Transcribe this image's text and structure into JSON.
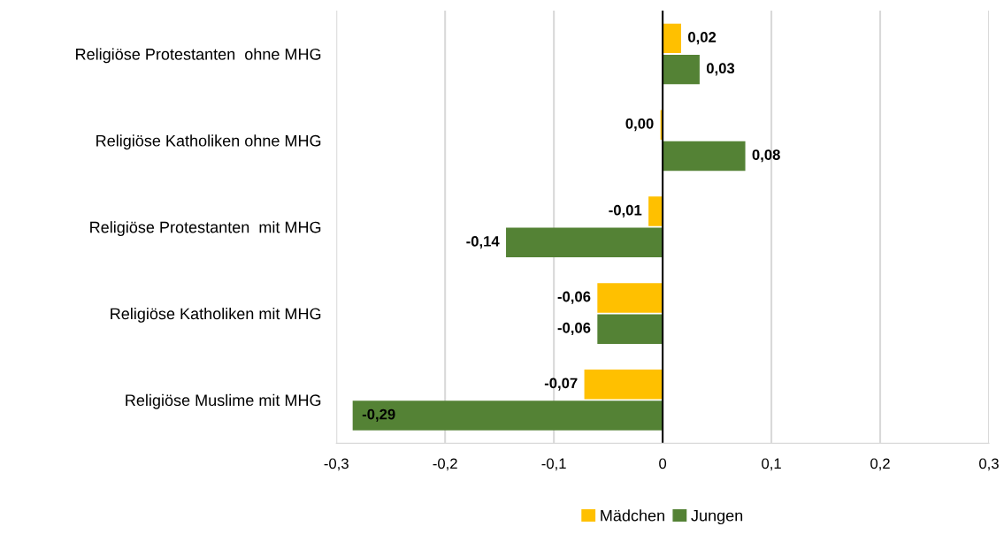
{
  "chart_data": {
    "type": "bar",
    "orientation": "horizontal",
    "categories": [
      "Religiöse Protestanten  ohne MHG",
      "Religiöse Katholiken ohne MHG",
      "Religiöse Protestanten  mit MHG",
      "Religiöse Katholiken mit MHG",
      "Religiöse Muslime mit MHG"
    ],
    "series": [
      {
        "name": "Mädchen",
        "color": "#ffc000",
        "values": [
          0.017,
          -0.002,
          -0.013,
          -0.06,
          -0.072
        ],
        "value_labels": [
          "0,02",
          "0,00",
          "-0,01",
          "-0,06",
          "-0,07"
        ]
      },
      {
        "name": "Jungen",
        "color": "#548235",
        "values": [
          0.034,
          0.076,
          -0.144,
          -0.06,
          -0.285
        ],
        "value_labels": [
          "0,03",
          "0,08",
          "-0,14",
          "-0,06",
          "-0,29"
        ]
      }
    ],
    "xlim": [
      -0.3,
      0.3
    ],
    "xticks": [
      {
        "value": -0.3,
        "label": "-0,3"
      },
      {
        "value": -0.2,
        "label": "-0,2"
      },
      {
        "value": -0.1,
        "label": "-0,1"
      },
      0,
      {
        "value": 0.1,
        "label": "0,1"
      },
      {
        "value": 0.2,
        "label": "0,2"
      },
      {
        "value": 0.3,
        "label": "0,3"
      }
    ],
    "grid": "x",
    "legend": "bottom"
  }
}
